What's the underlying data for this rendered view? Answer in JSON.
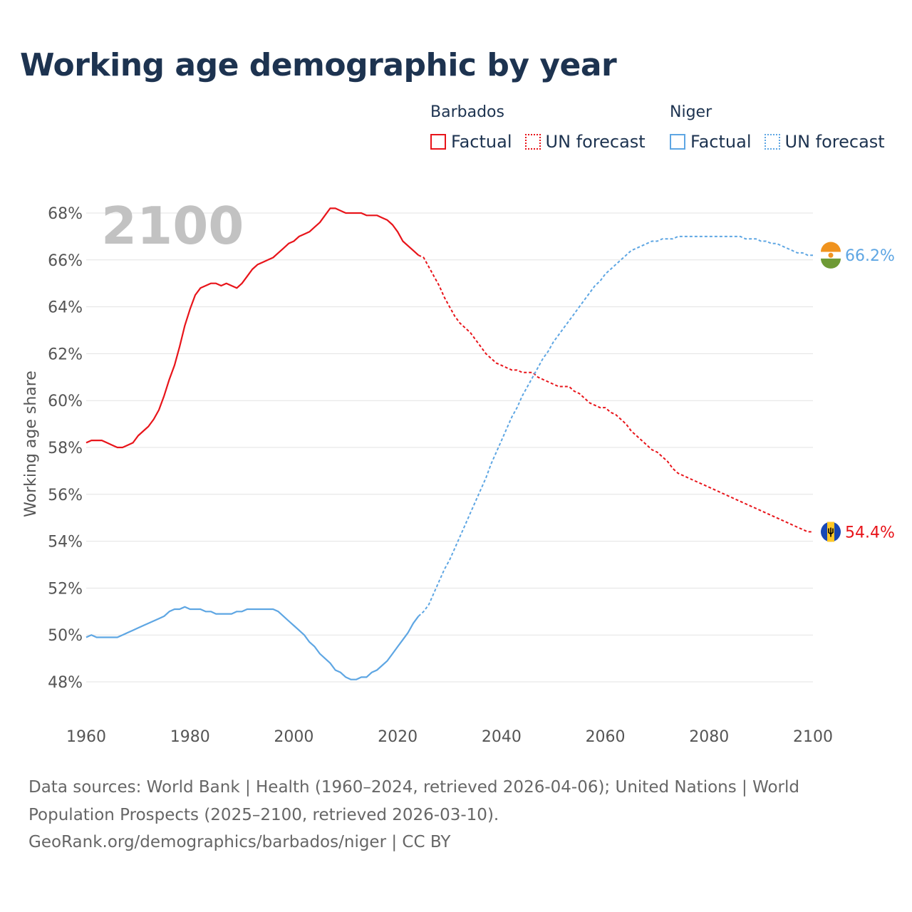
{
  "title": "Working age demographic by year",
  "legend": {
    "groups": [
      {
        "name": "Barbados",
        "color": "#e8141a",
        "factual_label": "Factual",
        "forecast_label": "UN forecast"
      },
      {
        "name": "Niger",
        "color": "#5ea6e3",
        "factual_label": "Factual",
        "forecast_label": "UN forecast"
      }
    ]
  },
  "year_stamp": "2100",
  "footer": {
    "line1": "Data sources: World Bank | Health (1960–2024, retrieved 2026-04-06); United Nations | World Population Prospects (2025–2100, retrieved 2026-03-10).",
    "line2": "GeoRank.org/demographics/barbados/niger | CC BY"
  },
  "chart_data": {
    "type": "line",
    "title": "Working age demographic by year",
    "xlabel": "",
    "ylabel": "Working age share",
    "xlim": [
      1960,
      2100
    ],
    "ylim": [
      47,
      69
    ],
    "x_ticks": [
      1960,
      1980,
      2000,
      2020,
      2040,
      2060,
      2080,
      2100
    ],
    "x_tick_labels": [
      "1960",
      "1980",
      "2000",
      "2020",
      "2040",
      "2060",
      "2080",
      "2100"
    ],
    "y_ticks": [
      48,
      50,
      52,
      54,
      56,
      58,
      60,
      62,
      64,
      66,
      68
    ],
    "y_tick_labels": [
      "48%",
      "50%",
      "52%",
      "54%",
      "56%",
      "58%",
      "60%",
      "62%",
      "64%",
      "66%",
      "68%"
    ],
    "grid": true,
    "series": [
      {
        "name": "Barbados",
        "color": "#e8141a",
        "end_label": "54.4%",
        "flag_icon": "barbados-flag-icon",
        "factual": {
          "x": [
            1960,
            1961,
            1962,
            1963,
            1964,
            1965,
            1966,
            1967,
            1968,
            1969,
            1970,
            1971,
            1972,
            1973,
            1974,
            1975,
            1976,
            1977,
            1978,
            1979,
            1980,
            1981,
            1982,
            1983,
            1984,
            1985,
            1986,
            1987,
            1988,
            1989,
            1990,
            1991,
            1992,
            1993,
            1994,
            1995,
            1996,
            1997,
            1998,
            1999,
            2000,
            2001,
            2002,
            2003,
            2004,
            2005,
            2006,
            2007,
            2008,
            2009,
            2010,
            2011,
            2012,
            2013,
            2014,
            2015,
            2016,
            2017,
            2018,
            2019,
            2020,
            2021,
            2022,
            2023,
            2024
          ],
          "y": [
            58.2,
            58.3,
            58.3,
            58.3,
            58.2,
            58.1,
            58.0,
            58.0,
            58.1,
            58.2,
            58.5,
            58.7,
            58.9,
            59.2,
            59.6,
            60.2,
            60.9,
            61.5,
            62.3,
            63.2,
            63.9,
            64.5,
            64.8,
            64.9,
            65.0,
            65.0,
            64.9,
            65.0,
            64.9,
            64.8,
            65.0,
            65.3,
            65.6,
            65.8,
            65.9,
            66.0,
            66.1,
            66.3,
            66.5,
            66.7,
            66.8,
            67.0,
            67.1,
            67.2,
            67.4,
            67.6,
            67.9,
            68.2,
            68.2,
            68.1,
            68.0,
            68.0,
            68.0,
            68.0,
            67.9,
            67.9,
            67.9,
            67.8,
            67.7,
            67.5,
            67.2,
            66.8,
            66.6,
            66.4,
            66.2
          ]
        },
        "forecast": {
          "x": [
            2024,
            2025,
            2026,
            2027,
            2028,
            2029,
            2030,
            2031,
            2032,
            2033,
            2034,
            2035,
            2036,
            2037,
            2038,
            2039,
            2040,
            2041,
            2042,
            2043,
            2044,
            2045,
            2046,
            2047,
            2048,
            2049,
            2050,
            2051,
            2052,
            2053,
            2054,
            2055,
            2056,
            2057,
            2058,
            2059,
            2060,
            2061,
            2062,
            2063,
            2064,
            2065,
            2066,
            2067,
            2068,
            2069,
            2070,
            2071,
            2072,
            2073,
            2074,
            2075,
            2076,
            2077,
            2078,
            2079,
            2080,
            2081,
            2082,
            2083,
            2084,
            2085,
            2086,
            2087,
            2088,
            2089,
            2090,
            2091,
            2092,
            2093,
            2094,
            2095,
            2096,
            2097,
            2098,
            2099,
            2100
          ],
          "y": [
            66.2,
            66.1,
            65.7,
            65.3,
            64.9,
            64.4,
            64.0,
            63.6,
            63.3,
            63.1,
            62.9,
            62.6,
            62.3,
            62.0,
            61.8,
            61.6,
            61.5,
            61.4,
            61.3,
            61.3,
            61.2,
            61.2,
            61.2,
            61.0,
            60.9,
            60.8,
            60.7,
            60.6,
            60.6,
            60.6,
            60.4,
            60.3,
            60.1,
            59.9,
            59.8,
            59.7,
            59.7,
            59.5,
            59.4,
            59.2,
            59.0,
            58.7,
            58.5,
            58.3,
            58.1,
            57.9,
            57.8,
            57.6,
            57.4,
            57.1,
            56.9,
            56.8,
            56.7,
            56.6,
            56.5,
            56.4,
            56.3,
            56.2,
            56.1,
            56.0,
            55.9,
            55.8,
            55.7,
            55.6,
            55.5,
            55.4,
            55.3,
            55.2,
            55.1,
            55.0,
            54.9,
            54.8,
            54.7,
            54.6,
            54.5,
            54.4,
            54.4
          ]
        }
      },
      {
        "name": "Niger",
        "color": "#5ea6e3",
        "end_label": "66.2%",
        "flag_icon": "niger-flag-icon",
        "factual": {
          "x": [
            1960,
            1961,
            1962,
            1963,
            1964,
            1965,
            1966,
            1967,
            1968,
            1969,
            1970,
            1971,
            1972,
            1973,
            1974,
            1975,
            1976,
            1977,
            1978,
            1979,
            1980,
            1981,
            1982,
            1983,
            1984,
            1985,
            1986,
            1987,
            1988,
            1989,
            1990,
            1991,
            1992,
            1993,
            1994,
            1995,
            1996,
            1997,
            1998,
            1999,
            2000,
            2001,
            2002,
            2003,
            2004,
            2005,
            2006,
            2007,
            2008,
            2009,
            2010,
            2011,
            2012,
            2013,
            2014,
            2015,
            2016,
            2017,
            2018,
            2019,
            2020,
            2021,
            2022,
            2023,
            2024
          ],
          "y": [
            49.9,
            50.0,
            49.9,
            49.9,
            49.9,
            49.9,
            49.9,
            50.0,
            50.1,
            50.2,
            50.3,
            50.4,
            50.5,
            50.6,
            50.7,
            50.8,
            51.0,
            51.1,
            51.1,
            51.2,
            51.1,
            51.1,
            51.1,
            51.0,
            51.0,
            50.9,
            50.9,
            50.9,
            50.9,
            51.0,
            51.0,
            51.1,
            51.1,
            51.1,
            51.1,
            51.1,
            51.1,
            51.0,
            50.8,
            50.6,
            50.4,
            50.2,
            50.0,
            49.7,
            49.5,
            49.2,
            49.0,
            48.8,
            48.5,
            48.4,
            48.2,
            48.1,
            48.1,
            48.2,
            48.2,
            48.4,
            48.5,
            48.7,
            48.9,
            49.2,
            49.5,
            49.8,
            50.1,
            50.5,
            50.8
          ]
        },
        "forecast": {
          "x": [
            2024,
            2025,
            2026,
            2027,
            2028,
            2029,
            2030,
            2031,
            2032,
            2033,
            2034,
            2035,
            2036,
            2037,
            2038,
            2039,
            2040,
            2041,
            2042,
            2043,
            2044,
            2045,
            2046,
            2047,
            2048,
            2049,
            2050,
            2051,
            2052,
            2053,
            2054,
            2055,
            2056,
            2057,
            2058,
            2059,
            2060,
            2061,
            2062,
            2063,
            2064,
            2065,
            2066,
            2067,
            2068,
            2069,
            2070,
            2071,
            2072,
            2073,
            2074,
            2075,
            2076,
            2077,
            2078,
            2079,
            2080,
            2081,
            2082,
            2083,
            2084,
            2085,
            2086,
            2087,
            2088,
            2089,
            2090,
            2091,
            2092,
            2093,
            2094,
            2095,
            2096,
            2097,
            2098,
            2099,
            2100
          ],
          "y": [
            50.8,
            51.0,
            51.3,
            51.8,
            52.3,
            52.8,
            53.2,
            53.7,
            54.2,
            54.7,
            55.2,
            55.7,
            56.2,
            56.7,
            57.3,
            57.8,
            58.3,
            58.8,
            59.3,
            59.7,
            60.2,
            60.6,
            61.0,
            61.4,
            61.8,
            62.1,
            62.5,
            62.8,
            63.1,
            63.4,
            63.7,
            64.0,
            64.3,
            64.6,
            64.9,
            65.1,
            65.4,
            65.6,
            65.8,
            66.0,
            66.2,
            66.4,
            66.5,
            66.6,
            66.7,
            66.8,
            66.8,
            66.9,
            66.9,
            66.9,
            67.0,
            67.0,
            67.0,
            67.0,
            67.0,
            67.0,
            67.0,
            67.0,
            67.0,
            67.0,
            67.0,
            67.0,
            67.0,
            66.9,
            66.9,
            66.9,
            66.8,
            66.8,
            66.7,
            66.7,
            66.6,
            66.5,
            66.4,
            66.3,
            66.3,
            66.2,
            66.2
          ]
        }
      }
    ]
  }
}
